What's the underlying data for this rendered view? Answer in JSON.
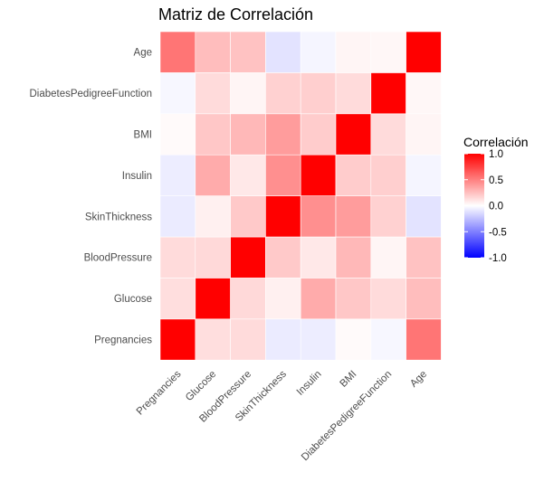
{
  "chart_data": {
    "type": "heatmap",
    "title": "Matriz de Correlación",
    "xlabel": "",
    "ylabel": "",
    "x_categories": [
      "Pregnancies",
      "Glucose",
      "BloodPressure",
      "SkinThickness",
      "Insulin",
      "BMI",
      "DiabetesPedigreeFunction",
      "Age"
    ],
    "y_categories": [
      "Pregnancies",
      "Glucose",
      "BloodPressure",
      "SkinThickness",
      "Insulin",
      "BMI",
      "DiabetesPedigreeFunction",
      "Age"
    ],
    "matrix": [
      [
        1.0,
        0.13,
        0.14,
        -0.08,
        -0.07,
        0.02,
        -0.03,
        0.54
      ],
      [
        0.13,
        1.0,
        0.15,
        0.06,
        0.33,
        0.22,
        0.14,
        0.26
      ],
      [
        0.14,
        0.15,
        1.0,
        0.21,
        0.09,
        0.28,
        0.04,
        0.24
      ],
      [
        -0.08,
        0.06,
        0.21,
        1.0,
        0.44,
        0.39,
        0.18,
        -0.11
      ],
      [
        -0.07,
        0.33,
        0.09,
        0.44,
        1.0,
        0.2,
        0.19,
        -0.04
      ],
      [
        0.02,
        0.22,
        0.28,
        0.39,
        0.2,
        1.0,
        0.14,
        0.04
      ],
      [
        -0.03,
        0.14,
        0.04,
        0.18,
        0.19,
        0.14,
        1.0,
        0.03
      ],
      [
        0.54,
        0.26,
        0.24,
        -0.11,
        -0.04,
        0.04,
        0.03,
        1.0
      ]
    ],
    "legend": {
      "title": "Correlación",
      "ticks": [
        1.0,
        0.5,
        0.0,
        -0.5,
        -1.0
      ],
      "tick_labels": [
        "1.0",
        "0.5",
        "0.0",
        "-0.5",
        "-1.0"
      ],
      "position": "right"
    },
    "color_scale": {
      "low": "#0000ff",
      "mid": "#ffffff",
      "high": "#ff0000",
      "limits": [
        -1,
        1
      ]
    },
    "grid": false
  }
}
